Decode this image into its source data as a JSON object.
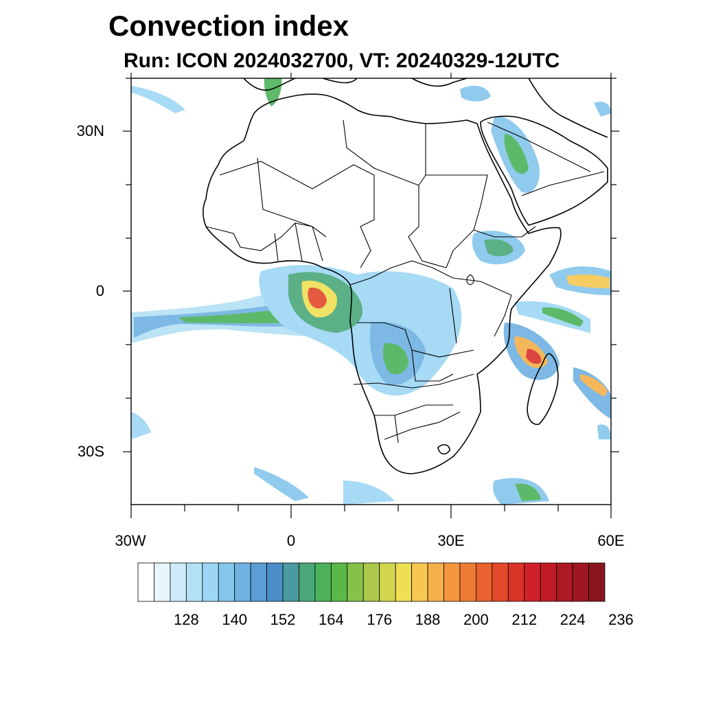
{
  "title": "Convection index",
  "subtitle": "Run: ICON 2024032700,  VT: 20240329-12UTC",
  "lat_labels": [
    "30N",
    "0",
    "30S"
  ],
  "lon_labels": [
    "30W",
    "0",
    "30E",
    "60E"
  ],
  "colorbar": {
    "labels": [
      "128",
      "140",
      "152",
      "164",
      "176",
      "188",
      "200",
      "212",
      "224",
      "236"
    ],
    "colors": [
      "#ffffff",
      "#e8f5fc",
      "#cdebf8",
      "#b4e1f6",
      "#9dd6f4",
      "#85c6ec",
      "#6fb2e2",
      "#5a9ed5",
      "#4a8fc6",
      "#4a9aa0",
      "#4aa87a",
      "#4cb25a",
      "#5ab848",
      "#86c24a",
      "#acc94c",
      "#d2d64e",
      "#eedf55",
      "#f6c852",
      "#f6b04a",
      "#f4963e",
      "#ef7c36",
      "#e9612e",
      "#e2492a",
      "#da3328",
      "#cf2228",
      "#c01c26",
      "#ae1a24",
      "#9d1822",
      "#8a1620"
    ]
  },
  "map": {
    "lon_range": [
      -30,
      60
    ],
    "lat_range": [
      -40,
      40
    ]
  }
}
